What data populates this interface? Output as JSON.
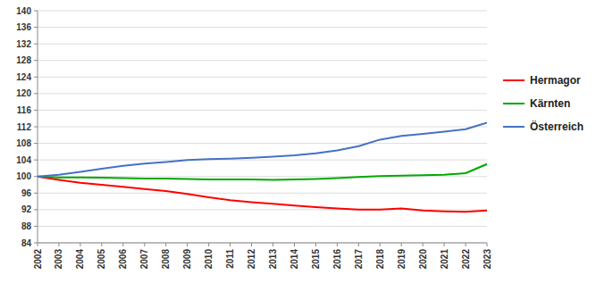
{
  "chart_data": {
    "type": "line",
    "x": [
      2002,
      2003,
      2004,
      2005,
      2006,
      2007,
      2008,
      2009,
      2010,
      2011,
      2012,
      2013,
      2014,
      2015,
      2016,
      2017,
      2018,
      2019,
      2020,
      2021,
      2022,
      2023
    ],
    "xlim": [
      2002,
      2023
    ],
    "xticks": [
      2002,
      2003,
      2004,
      2005,
      2006,
      2007,
      2008,
      2009,
      2010,
      2011,
      2012,
      2013,
      2014,
      2015,
      2016,
      2017,
      2018,
      2019,
      2020,
      2021,
      2022,
      2023
    ],
    "series": [
      {
        "name": "Hermagor",
        "color": "#ff0000",
        "values": [
          100.0,
          99.2,
          98.5,
          98.0,
          97.5,
          97.0,
          96.5,
          95.8,
          95.0,
          94.3,
          93.8,
          93.4,
          93.0,
          92.6,
          92.3,
          92.0,
          92.0,
          92.3,
          91.8,
          91.6,
          91.5,
          91.8
        ]
      },
      {
        "name": "Kärnten",
        "color": "#00aa00",
        "values": [
          100.0,
          99.8,
          99.8,
          99.7,
          99.6,
          99.5,
          99.5,
          99.4,
          99.3,
          99.3,
          99.3,
          99.2,
          99.3,
          99.4,
          99.6,
          99.9,
          100.1,
          100.2,
          100.3,
          100.4,
          100.8,
          103.0
        ]
      },
      {
        "name": "Österreich",
        "color": "#4472c4",
        "values": [
          100.0,
          100.4,
          101.1,
          101.9,
          102.6,
          103.1,
          103.5,
          104.0,
          104.2,
          104.3,
          104.5,
          104.8,
          105.1,
          105.6,
          106.3,
          107.3,
          108.9,
          109.8,
          110.3,
          110.8,
          111.4,
          113.0
        ]
      }
    ],
    "ylim": [
      84,
      140
    ],
    "yticks": [
      84,
      88,
      92,
      96,
      100,
      104,
      108,
      112,
      116,
      120,
      124,
      128,
      132,
      136,
      140
    ],
    "grid": true,
    "legend": "right"
  }
}
